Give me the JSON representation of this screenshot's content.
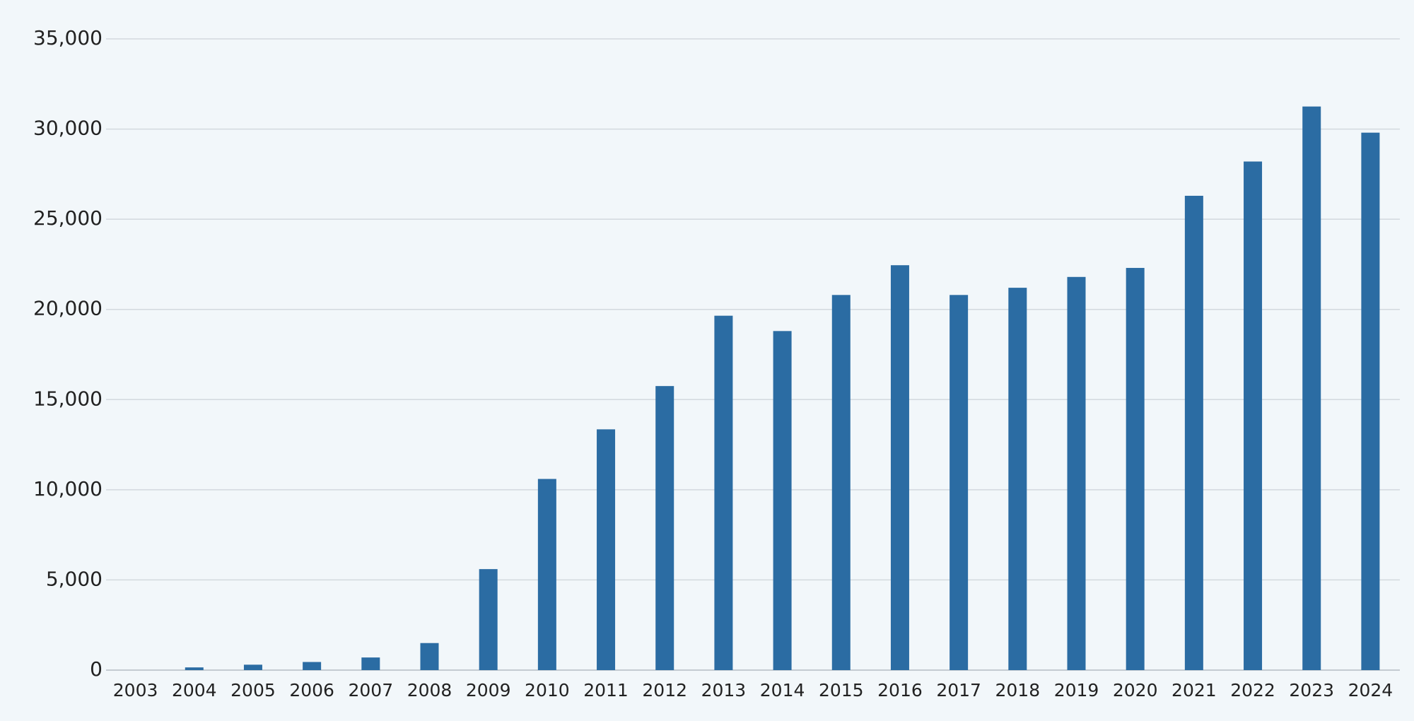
{
  "chart_data": {
    "type": "bar",
    "categories": [
      "2003",
      "2004",
      "2005",
      "2006",
      "2007",
      "2008",
      "2009",
      "2010",
      "2011",
      "2012",
      "2013",
      "2014",
      "2015",
      "2016",
      "2017",
      "2018",
      "2019",
      "2020",
      "2021",
      "2022",
      "2023",
      "2024"
    ],
    "values": [
      0,
      150,
      300,
      450,
      700,
      1500,
      5600,
      10600,
      13350,
      15750,
      19650,
      18800,
      20800,
      22450,
      20800,
      21200,
      21800,
      22300,
      26300,
      28200,
      31250,
      29800
    ],
    "color": "#2b6ca3",
    "ylim": [
      0,
      35000
    ],
    "yticks": [
      0,
      {
        "value": 5000,
        "label": "5,000"
      },
      {
        "value": 10000,
        "label": "10,000"
      },
      {
        "value": 15000,
        "label": "15,000"
      },
      {
        "value": 20000,
        "label": "20,000"
      },
      {
        "value": 25000,
        "label": "25,000"
      },
      {
        "value": 30000,
        "label": "30,000"
      },
      {
        "value": 35000,
        "label": "35,000"
      }
    ],
    "grid": true
  }
}
